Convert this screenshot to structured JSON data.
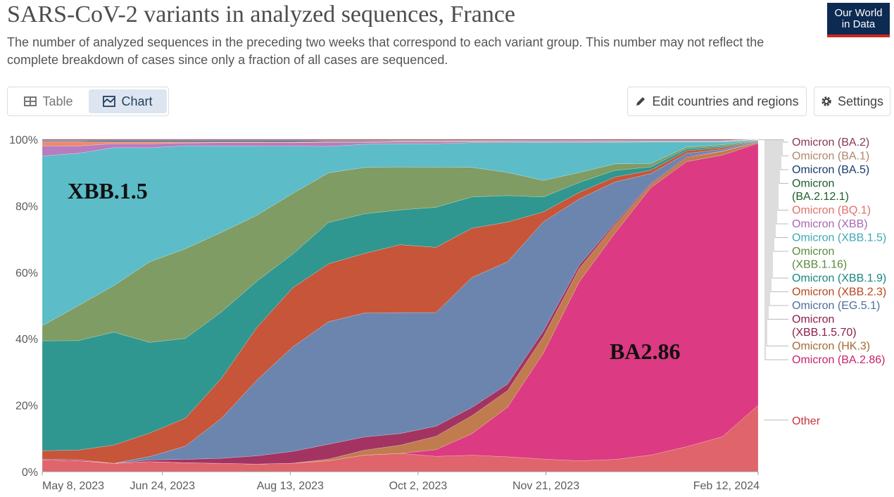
{
  "header": {
    "title": "SARS-CoV-2 variants in analyzed sequences, France",
    "subtitle": "The number of analyzed sequences in the preceding two weeks that correspond to each variant group. This number may not reflect the complete breakdown of cases since only a fraction of all cases are sequenced.",
    "logo_line1": "Our World",
    "logo_line2": "in Data"
  },
  "tabs": {
    "table_label": "Table",
    "chart_label": "Chart",
    "active": "Chart"
  },
  "toolbar": {
    "edit_label": "Edit countries and regions",
    "settings_label": "Settings"
  },
  "colors": {
    "logo_bg": "#0d2a52",
    "logo_accent": "#ce261e",
    "active_tab_bg": "#dde6f0"
  },
  "annotations": [
    "XBB.1.5",
    "BA2.86"
  ],
  "chart_data": {
    "type": "area",
    "stacking": "percent",
    "title": "SARS-CoV-2 variants in analyzed sequences, France",
    "x_ticks": [
      "May 8, 2023",
      "Jun 24, 2023",
      "Aug 13, 2023",
      "Oct 2, 2023",
      "Nov 21, 2023",
      "Feb 12, 2024"
    ],
    "y_ticks": [
      "0%",
      "20%",
      "40%",
      "60%",
      "80%",
      "100%"
    ],
    "ylim": [
      0,
      100
    ],
    "x": [
      "2023-05-08",
      "2023-05-22",
      "2023-06-05",
      "2023-06-19",
      "2023-07-03",
      "2023-07-17",
      "2023-07-31",
      "2023-08-14",
      "2023-08-28",
      "2023-09-11",
      "2023-09-25",
      "2023-10-09",
      "2023-10-23",
      "2023-11-06",
      "2023-11-20",
      "2023-12-04",
      "2023-12-18",
      "2024-01-01",
      "2024-01-15",
      "2024-01-29",
      "2024-02-12"
    ],
    "series": [
      {
        "name": "Other",
        "color": "#e0646b",
        "values": [
          3.5,
          3.3,
          2.5,
          3,
          2.7,
          2.5,
          2.3,
          2.5,
          3.3,
          5,
          5.5,
          4.6,
          5,
          4.5,
          3.8,
          3.3,
          3.7,
          5,
          7.5,
          10.5,
          20
        ]
      },
      {
        "name": "Omicron (BA.2.86)",
        "color": "#dc3a82",
        "values": [
          0,
          0,
          0,
          0,
          0,
          0,
          0,
          0,
          0,
          0,
          0,
          2,
          6.5,
          15,
          32,
          54,
          68.5,
          80.5,
          85.5,
          84.5,
          78.8
        ]
      },
      {
        "name": "Omicron (HK.3)",
        "color": "#c07c4e",
        "values": [
          0,
          0,
          0,
          0,
          0,
          0,
          0,
          0,
          0.5,
          1.5,
          2.5,
          4,
          5.5,
          5,
          5,
          4,
          2.5,
          1,
          1.2,
          1.1,
          0.3
        ]
      },
      {
        "name": "Omicron (XBB.1.5.70)",
        "color": "#a33461",
        "values": [
          0.3,
          0.3,
          0,
          0.5,
          1,
          1.5,
          2.5,
          3.5,
          4.5,
          4,
          3.5,
          3,
          2.5,
          2,
          1.7,
          1,
          0.5,
          0.3,
          0.3,
          0.1,
          0.1
        ]
      },
      {
        "name": "Omicron (EG.5.1)",
        "color": "#6b85ae",
        "values": [
          0,
          0,
          0,
          1,
          4,
          12,
          23,
          31,
          37,
          37.5,
          36.5,
          34,
          39.5,
          37,
          33,
          20,
          12.5,
          3,
          1,
          0.5,
          0.3
        ]
      },
      {
        "name": "Omicron (XBB.2.3)",
        "color": "#c6553a",
        "values": [
          2.5,
          2.9,
          5.5,
          7,
          8.4,
          12,
          16,
          17.5,
          17.5,
          18,
          20.5,
          19.5,
          15,
          12,
          3,
          2,
          1.5,
          1,
          0.8,
          0.5,
          0.1
        ]
      },
      {
        "name": "Omicron (XBB.1.9)",
        "color": "#2f978f",
        "values": [
          33,
          33,
          34,
          27,
          24,
          20,
          14,
          10,
          12.5,
          12,
          10.5,
          12,
          9.5,
          8,
          4.5,
          3,
          2,
          1,
          0.6,
          0.4,
          0.1
        ]
      },
      {
        "name": "Omicron (XBB.1.16)",
        "color": "#7f9c64",
        "values": [
          4.5,
          10.5,
          14,
          24,
          27,
          24,
          20,
          18,
          15,
          14,
          13,
          12,
          9,
          7,
          5,
          3,
          2,
          1,
          0.5,
          0.5,
          0.1
        ]
      },
      {
        "name": "Omicron (XBB.1.5)",
        "color": "#5cbcc8",
        "values": [
          51,
          46,
          41.5,
          34,
          31,
          26,
          21,
          14,
          8,
          7,
          7,
          7,
          7.5,
          9,
          11.5,
          9,
          6.5,
          6.5,
          1.5,
          0.8,
          0.1
        ]
      },
      {
        "name": "Omicron (XBB)",
        "color": "#b87cc0",
        "values": [
          3,
          2.2,
          1.2,
          1.2,
          0.8,
          1,
          1,
          1,
          1.2,
          0.6,
          0.5,
          0.5,
          0.2,
          0.3,
          0.2,
          0.3,
          0.2,
          0.1,
          0.1,
          0.1,
          0.1
        ]
      },
      {
        "name": "Omicron (BQ.1)",
        "color": "#eb8a73",
        "values": [
          1.3,
          1.3,
          0.5,
          0.5,
          0.3,
          0.2,
          0.2,
          0.2,
          0.2,
          0.2,
          0.2,
          0.2,
          0.2,
          0.1,
          0.1,
          0.1,
          0.1,
          0.1,
          0.1,
          0.1,
          0
        ]
      },
      {
        "name": "Omicron (BA.2.12.1)",
        "color": "#1c5e2a",
        "values": [
          0.1,
          0.1,
          0.1,
          0.1,
          0.1,
          0.1,
          0.1,
          0.1,
          0.1,
          0.1,
          0.1,
          0.1,
          0.1,
          0.1,
          0.1,
          0.1,
          0.1,
          0.1,
          0.1,
          0.1,
          0
        ]
      },
      {
        "name": "Omicron (BA.5)",
        "color": "#163b6d",
        "values": [
          0.2,
          0.2,
          0.3,
          0.3,
          0.3,
          0.3,
          0.3,
          0.3,
          0.2,
          0.2,
          0.1,
          0.1,
          0.1,
          0.1,
          0.1,
          0.1,
          0.1,
          0.1,
          0.1,
          0.1,
          0
        ]
      },
      {
        "name": "Omicron (BA.1)",
        "color": "#b0876d",
        "values": [
          0.1,
          0.1,
          0.1,
          0.1,
          0.1,
          0.1,
          0.1,
          0.1,
          0.1,
          0.1,
          0.1,
          0.1,
          0.1,
          0.1,
          0.1,
          0.1,
          0.1,
          0.1,
          0.1,
          0.1,
          0
        ]
      },
      {
        "name": "Omicron (BA.2)",
        "color": "#8b3556",
        "values": [
          0.3,
          0.3,
          0.3,
          0.3,
          0.3,
          0.3,
          0.3,
          0.3,
          0.3,
          0.3,
          0.3,
          0.3,
          0.3,
          0.3,
          0.3,
          0.3,
          0.3,
          0.3,
          0.3,
          0.3,
          0
        ]
      }
    ],
    "legend": {
      "placement": "right",
      "entries": [
        {
          "name": "Omicron (BA.2)",
          "lines": [
            "Omicron (BA.2)"
          ],
          "color": "#8b3556"
        },
        {
          "name": "Omicron (BA.1)",
          "lines": [
            "Omicron (BA.1)"
          ],
          "color": "#b0876d"
        },
        {
          "name": "Omicron (BA.5)",
          "lines": [
            "Omicron (BA.5)"
          ],
          "color": "#163b6d"
        },
        {
          "name": "Omicron (BA.2.12.1)",
          "lines": [
            "Omicron",
            "(BA.2.12.1)"
          ],
          "color": "#1c5e2a"
        },
        {
          "name": "Omicron (BQ.1)",
          "lines": [
            "Omicron (BQ.1)"
          ],
          "color": "#e0706a"
        },
        {
          "name": "Omicron (XBB)",
          "lines": [
            "Omicron (XBB)"
          ],
          "color": "#a866b4"
        },
        {
          "name": "Omicron (XBB.1.5)",
          "lines": [
            "Omicron (XBB.1.5)"
          ],
          "color": "#3fa9b6"
        },
        {
          "name": "Omicron (XBB.1.16)",
          "lines": [
            "Omicron",
            "(XBB.1.16)"
          ],
          "color": "#5c8a3e"
        },
        {
          "name": "Omicron (XBB.1.9)",
          "lines": [
            "Omicron (XBB.1.9)"
          ],
          "color": "#168781"
        },
        {
          "name": "Omicron (XBB.2.3)",
          "lines": [
            "Omicron (XBB.2.3)"
          ],
          "color": "#b7461f"
        },
        {
          "name": "Omicron (EG.5.1)",
          "lines": [
            "Omicron (EG.5.1)"
          ],
          "color": "#4f6d9a"
        },
        {
          "name": "Omicron (XBB.1.5.70)",
          "lines": [
            "Omicron",
            "(XBB.1.5.70)"
          ],
          "color": "#8e1d4c"
        },
        {
          "name": "Omicron (HK.3)",
          "lines": [
            "Omicron (HK.3)"
          ],
          "color": "#a46a35"
        },
        {
          "name": "Omicron (BA.2.86)",
          "lines": [
            "Omicron (BA.2.86)"
          ],
          "color": "#c8226b"
        },
        {
          "name": "Other",
          "lines": [
            "Other"
          ],
          "color": "#c8323d"
        }
      ]
    }
  }
}
